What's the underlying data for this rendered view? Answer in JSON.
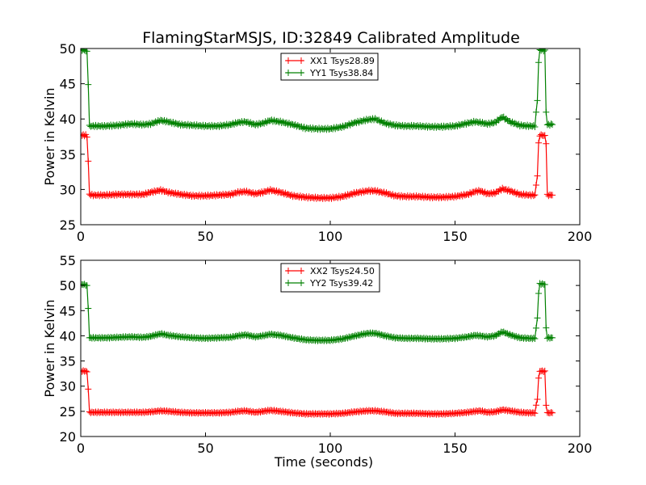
{
  "title": "FlamingStarMSJS, ID:32849 Calibrated Amplitude",
  "colors": {
    "xx": "#ff0000",
    "yy": "#008000"
  },
  "chart_data": [
    {
      "type": "line",
      "ylabel": "Power in Kelvin",
      "xlabel": "",
      "xlim": [
        0,
        200
      ],
      "ylim": [
        25,
        50
      ],
      "xticks": [
        0,
        50,
        100,
        150,
        200
      ],
      "yticks": [
        25,
        30,
        35,
        40,
        45,
        50
      ],
      "legend_position": "top-center",
      "series": [
        {
          "name": "XX1 Tsys28.89",
          "color": "#ff0000",
          "x": [
            0,
            1,
            2,
            2.5,
            3,
            3.5,
            5,
            10,
            15,
            20,
            25,
            28,
            32,
            35,
            40,
            45,
            50,
            55,
            60,
            63,
            66,
            70,
            73,
            76,
            80,
            85,
            90,
            95,
            100,
            105,
            110,
            115,
            118,
            122,
            126,
            130,
            135,
            140,
            145,
            150,
            155,
            158,
            160,
            163,
            166,
            169,
            172,
            176,
            180,
            182,
            183,
            183.5,
            184,
            185,
            186,
            186.5,
            187,
            188,
            189
          ],
          "y": [
            37.7,
            37.7,
            37.7,
            37.5,
            34,
            29.3,
            29.2,
            29.2,
            29.3,
            29.3,
            29.3,
            29.6,
            29.9,
            29.6,
            29.3,
            29.1,
            29.1,
            29.2,
            29.3,
            29.6,
            29.7,
            29.4,
            29.6,
            29.9,
            29.6,
            29.1,
            28.9,
            28.8,
            28.8,
            29.0,
            29.5,
            29.8,
            29.8,
            29.5,
            29.1,
            29.0,
            29.0,
            28.9,
            28.9,
            29.0,
            29.3,
            29.7,
            29.8,
            29.4,
            29.5,
            30.1,
            29.8,
            29.3,
            29.2,
            29.2,
            32,
            36.5,
            37.7,
            37.7,
            37.6,
            36.6,
            29.2,
            29.2,
            29.2
          ]
        },
        {
          "name": "YY1 Tsys38.84",
          "color": "#008000",
          "x": [
            0,
            1,
            2,
            2.5,
            3,
            3.5,
            5,
            10,
            15,
            20,
            25,
            28,
            32,
            35,
            40,
            45,
            50,
            55,
            60,
            63,
            66,
            70,
            73,
            76,
            80,
            85,
            90,
            95,
            100,
            105,
            110,
            115,
            118,
            122,
            126,
            130,
            135,
            140,
            145,
            150,
            155,
            158,
            160,
            163,
            166,
            169,
            172,
            176,
            180,
            182,
            183,
            183.5,
            184,
            185,
            186,
            186.5,
            187,
            188,
            189
          ],
          "y": [
            49.8,
            49.8,
            49.7,
            49.5,
            45,
            39.0,
            39.0,
            39.0,
            39.1,
            39.3,
            39.2,
            39.3,
            39.8,
            39.6,
            39.2,
            39.1,
            39.0,
            39.0,
            39.2,
            39.5,
            39.6,
            39.2,
            39.4,
            39.8,
            39.6,
            39.2,
            38.7,
            38.6,
            38.6,
            38.9,
            39.5,
            39.9,
            40.0,
            39.4,
            39.1,
            39.0,
            39.0,
            38.9,
            38.9,
            39.0,
            39.4,
            39.6,
            39.5,
            39.3,
            39.5,
            40.3,
            39.6,
            39.1,
            39.0,
            39.0,
            42.7,
            48,
            49.8,
            49.8,
            49.7,
            41,
            39.2,
            39.2,
            39.2
          ]
        }
      ]
    },
    {
      "type": "line",
      "ylabel": "Power in Kelvin",
      "xlabel": "Time (seconds)",
      "xlim": [
        0,
        200
      ],
      "ylim": [
        20,
        55
      ],
      "xticks": [
        0,
        50,
        100,
        150,
        200
      ],
      "yticks": [
        20,
        25,
        30,
        35,
        40,
        45,
        50,
        55
      ],
      "legend_position": "top-center",
      "series": [
        {
          "name": "XX2 Tsys24.50",
          "color": "#ff0000",
          "x": [
            0,
            1,
            2,
            2.5,
            3,
            3.5,
            5,
            10,
            15,
            20,
            25,
            28,
            32,
            35,
            40,
            45,
            50,
            55,
            60,
            63,
            66,
            70,
            73,
            76,
            80,
            85,
            90,
            95,
            100,
            105,
            110,
            115,
            118,
            122,
            126,
            130,
            135,
            140,
            145,
            150,
            155,
            158,
            160,
            163,
            166,
            169,
            172,
            176,
            180,
            182,
            183,
            183.5,
            184,
            185,
            186,
            186.5,
            187,
            188,
            189
          ],
          "y": [
            33.0,
            33.0,
            33.0,
            32.8,
            29.5,
            24.8,
            24.8,
            24.8,
            24.8,
            24.8,
            24.8,
            24.9,
            25.1,
            25.0,
            24.8,
            24.7,
            24.7,
            24.7,
            24.8,
            25.0,
            25.1,
            24.8,
            25.0,
            25.2,
            25.0,
            24.7,
            24.5,
            24.5,
            24.5,
            24.6,
            24.9,
            25.1,
            25.1,
            24.9,
            24.6,
            24.6,
            24.6,
            24.5,
            24.5,
            24.6,
            24.8,
            25.0,
            25.1,
            24.8,
            24.9,
            25.3,
            25.1,
            24.8,
            24.7,
            24.7,
            27.5,
            31.5,
            33.0,
            33.0,
            32.9,
            26.3,
            24.7,
            24.7,
            24.7
          ]
        },
        {
          "name": "YY2 Tsys39.42",
          "color": "#008000",
          "x": [
            0,
            1,
            2,
            2.5,
            3,
            3.5,
            5,
            10,
            15,
            20,
            25,
            28,
            32,
            35,
            40,
            45,
            50,
            55,
            60,
            63,
            66,
            70,
            73,
            76,
            80,
            85,
            90,
            95,
            100,
            105,
            110,
            115,
            118,
            122,
            126,
            130,
            135,
            140,
            145,
            150,
            155,
            158,
            160,
            163,
            166,
            169,
            172,
            176,
            180,
            182,
            183,
            183.5,
            184,
            185,
            186,
            186.5,
            187,
            188,
            189
          ],
          "y": [
            50.2,
            50.2,
            50.1,
            49.9,
            45.5,
            39.6,
            39.6,
            39.6,
            39.7,
            39.8,
            39.7,
            39.9,
            40.4,
            40.1,
            39.8,
            39.6,
            39.5,
            39.6,
            39.7,
            40.0,
            40.2,
            39.8,
            40.0,
            40.3,
            40.1,
            39.6,
            39.2,
            39.1,
            39.1,
            39.4,
            40.0,
            40.5,
            40.5,
            40.0,
            39.6,
            39.5,
            39.5,
            39.4,
            39.4,
            39.5,
            39.8,
            40.1,
            40.0,
            39.8,
            40.0,
            40.8,
            40.2,
            39.6,
            39.5,
            39.5,
            43.5,
            48.5,
            50.3,
            50.3,
            50.2,
            41.5,
            39.6,
            39.6,
            39.6
          ]
        }
      ]
    }
  ]
}
